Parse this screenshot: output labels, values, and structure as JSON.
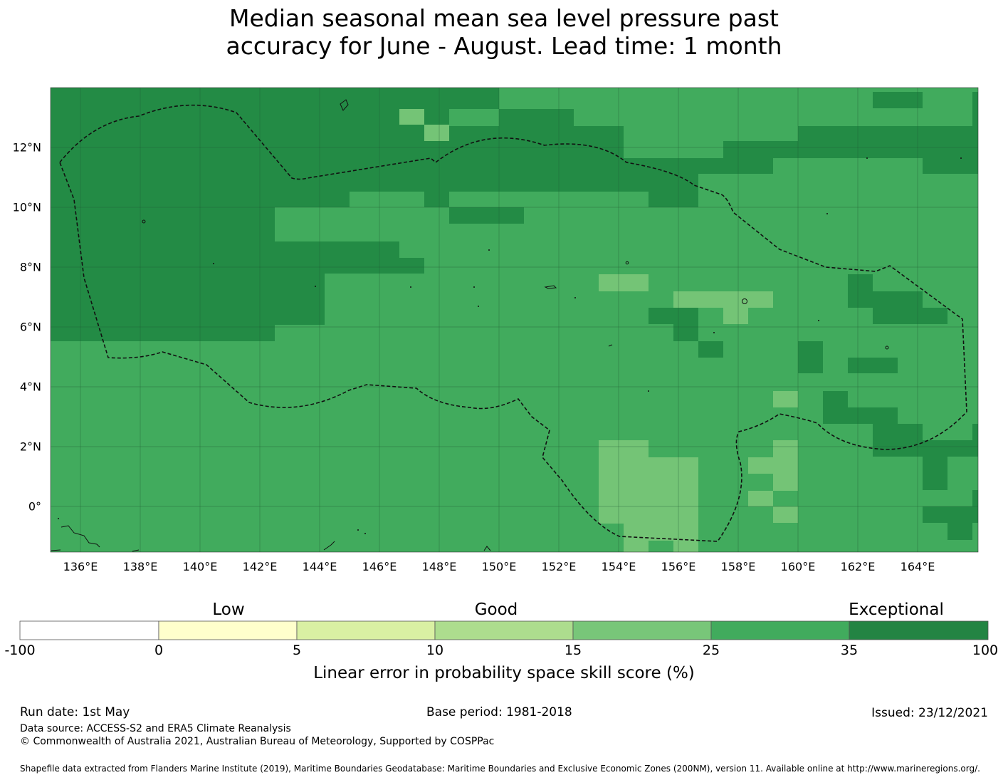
{
  "title": {
    "line1": "Median seasonal mean sea level pressure past",
    "line2": "accuracy for June - August. Lead time: 1 month"
  },
  "map": {
    "lon_ticks": [
      "136°E",
      "138°E",
      "140°E",
      "142°E",
      "144°E",
      "146°E",
      "148°E",
      "150°E",
      "152°E",
      "154°E",
      "156°E",
      "158°E",
      "160°E",
      "162°E",
      "164°E"
    ],
    "lat_ticks": [
      "12°N",
      "10°N",
      "8°N",
      "6°N",
      "4°N",
      "2°N",
      "0°"
    ],
    "colors": {
      "exceptional_dark": "#238b45",
      "good_mid": "#41ab5d",
      "good_light": "#74c476"
    }
  },
  "colorbar": {
    "categories": [
      "Low",
      "Good",
      "Exceptional"
    ],
    "ticks": [
      "-100",
      "0",
      "5",
      "10",
      "15",
      "25",
      "35",
      "100"
    ],
    "colors": [
      "#ffffff",
      "#ffffcc",
      "#d9f0a3",
      "#addd8e",
      "#78c679",
      "#41ab5d",
      "#238443"
    ],
    "label": "Linear error in probability space skill score (%)"
  },
  "footer": {
    "run_date": "Run date: 1st May",
    "base_period": "Base period: 1981-2018",
    "issued": "Issued: 23/12/2021",
    "data_source": "Data source: ACCESS-S2 and ERA5 Climate Reanalysis",
    "copyright": "© Commonwealth of Australia 2021, Australian Bureau of Meteorology, Supported by COSPPac",
    "shapefile": "Shapefile data extracted from Flanders Marine Institute (2019), Maritime Boundaries Geodatabase: Maritime Boundaries and Exclusive Economic Zones (200NM), version 11. Available online at http://www.marineregions.org/."
  }
}
